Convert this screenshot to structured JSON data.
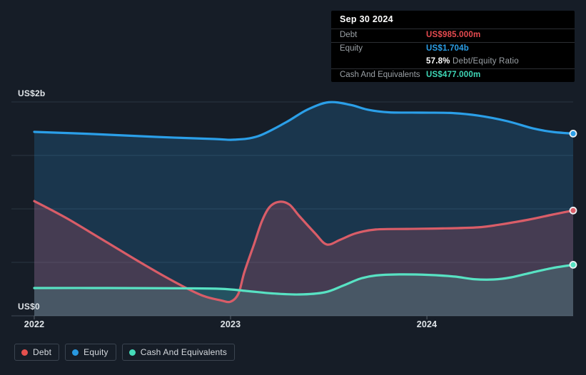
{
  "colors": {
    "background": "#161d27",
    "grid": "#2b3541",
    "axis_line": "#3e4956",
    "tick": "#5a646e",
    "axis_label": "#dfe4e8",
    "tooltip_bg": "#000000",
    "tooltip_title": "#ffffff",
    "tooltip_label": "#9ba1a6",
    "tooltip_divider": "#2c2f34",
    "legend_border": "#3b4450",
    "legend_label": "#d6dadf",
    "dot_ring": "#edf1f4",
    "debt": "#e84b50",
    "equity": "#2b9fe8",
    "cash": "#3fd8b7"
  },
  "tooltip": {
    "date": "Sep 30 2024",
    "debt": {
      "label": "Debt",
      "value": "US$985.000m"
    },
    "equity": {
      "label": "Equity",
      "value": "US$1.704b"
    },
    "ratio": {
      "value": "57.8%",
      "label": "Debt/Equity Ratio"
    },
    "cash": {
      "label": "Cash And Equivalents",
      "value": "US$477.000m"
    }
  },
  "axis": {
    "y_top": "US$2b",
    "y_bottom": "US$0",
    "x_ticks": [
      "2022",
      "2023",
      "2024"
    ]
  },
  "legend": {
    "items": [
      {
        "id": "debt",
        "label": "Debt",
        "color": "#e4504e"
      },
      {
        "id": "equity",
        "label": "Equity",
        "color": "#2898e0"
      },
      {
        "id": "cash",
        "label": "Cash And Equivalents",
        "color": "#45dcba"
      }
    ]
  },
  "chart_data": {
    "type": "area",
    "unit": "US$ billions",
    "x_domain": [
      2022.0,
      2024.745
    ],
    "ylim": [
      0,
      2
    ],
    "gridline_values": [
      0,
      0.5,
      1,
      1.5,
      2
    ],
    "x_tick_values": [
      2022,
      2023,
      2024
    ],
    "x_tick_labels": [
      "2022",
      "2023",
      "2024"
    ],
    "series": [
      {
        "name": "Equity",
        "line_color": "#2b9fe8",
        "fill_color": "rgba(43,157,232,0.20)",
        "end_value_label": "US$1.704b",
        "points": [
          [
            2022.0,
            1.72
          ],
          [
            2022.3,
            1.7
          ],
          [
            2022.62,
            1.673
          ],
          [
            2022.92,
            1.653
          ],
          [
            2023.02,
            1.647
          ],
          [
            2023.14,
            1.68
          ],
          [
            2023.28,
            1.807
          ],
          [
            2023.39,
            1.927
          ],
          [
            2023.5,
            1.997
          ],
          [
            2023.61,
            1.973
          ],
          [
            2023.7,
            1.927
          ],
          [
            2023.81,
            1.903
          ],
          [
            2023.97,
            1.9
          ],
          [
            2024.12,
            1.897
          ],
          [
            2024.26,
            1.873
          ],
          [
            2024.41,
            1.82
          ],
          [
            2024.54,
            1.753
          ],
          [
            2024.64,
            1.72
          ],
          [
            2024.745,
            1.704
          ]
        ]
      },
      {
        "name": "Debt",
        "line_color": "#d95d68",
        "fill_color": "rgba(224,80,100,0.22)",
        "end_value_label": "US$985.000m",
        "points": [
          [
            2022.0,
            1.073
          ],
          [
            2022.17,
            0.907
          ],
          [
            2022.37,
            0.687
          ],
          [
            2022.57,
            0.467
          ],
          [
            2022.74,
            0.293
          ],
          [
            2022.86,
            0.187
          ],
          [
            2022.95,
            0.145
          ],
          [
            2023.0,
            0.133
          ],
          [
            2023.04,
            0.207
          ],
          [
            2023.07,
            0.407
          ],
          [
            2023.12,
            0.673
          ],
          [
            2023.16,
            0.887
          ],
          [
            2023.2,
            1.02
          ],
          [
            2023.25,
            1.067
          ],
          [
            2023.3,
            1.04
          ],
          [
            2023.35,
            0.933
          ],
          [
            2023.43,
            0.773
          ],
          [
            2023.49,
            0.667
          ],
          [
            2023.56,
            0.713
          ],
          [
            2023.64,
            0.773
          ],
          [
            2023.74,
            0.807
          ],
          [
            2023.9,
            0.813
          ],
          [
            2024.08,
            0.817
          ],
          [
            2024.26,
            0.827
          ],
          [
            2024.37,
            0.853
          ],
          [
            2024.52,
            0.9
          ],
          [
            2024.64,
            0.947
          ],
          [
            2024.745,
            0.985
          ]
        ]
      },
      {
        "name": "Cash And Equivalents",
        "line_color": "#58e2c3",
        "fill_color": "rgba(87,226,194,0.17)",
        "end_value_label": "US$477.000m",
        "points": [
          [
            2022.0,
            0.26
          ],
          [
            2022.37,
            0.26
          ],
          [
            2022.74,
            0.257
          ],
          [
            2022.95,
            0.253
          ],
          [
            2023.08,
            0.233
          ],
          [
            2023.21,
            0.21
          ],
          [
            2023.35,
            0.2
          ],
          [
            2023.48,
            0.22
          ],
          [
            2023.57,
            0.28
          ],
          [
            2023.66,
            0.347
          ],
          [
            2023.74,
            0.377
          ],
          [
            2023.86,
            0.387
          ],
          [
            2024.01,
            0.383
          ],
          [
            2024.14,
            0.367
          ],
          [
            2024.24,
            0.343
          ],
          [
            2024.34,
            0.34
          ],
          [
            2024.43,
            0.36
          ],
          [
            2024.54,
            0.407
          ],
          [
            2024.64,
            0.447
          ],
          [
            2024.745,
            0.477
          ]
        ]
      }
    ]
  }
}
